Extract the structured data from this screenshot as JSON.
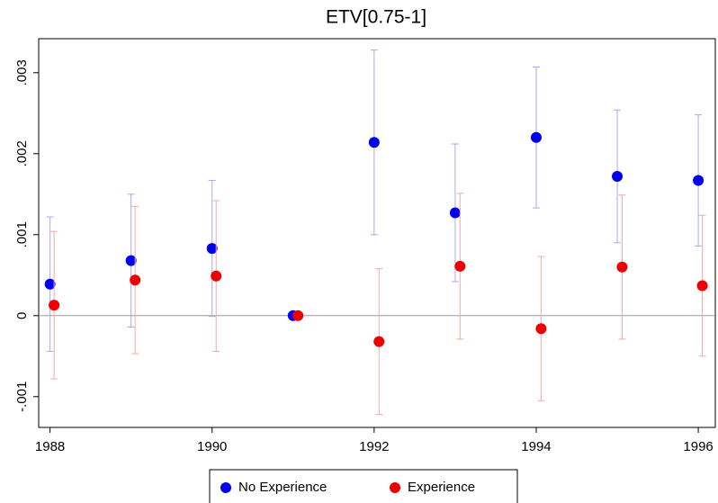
{
  "chart_data": {
    "type": "scatter",
    "title": "ETV[0.75-1]",
    "xlim": [
      1987.86,
      1996.21
    ],
    "xticks": [
      1988,
      1990,
      1992,
      1994,
      1996
    ],
    "ylim": [
      -0.00138,
      0.00342
    ],
    "yticks": [
      {
        "value": -0.001,
        "label": "-.001"
      },
      0,
      {
        "value": 0.001,
        "label": ".001"
      },
      {
        "value": 0.002,
        "label": ".002"
      },
      {
        "value": 0.003,
        "label": ".003"
      }
    ],
    "legend": "bottom",
    "series": [
      {
        "name": "No Experience",
        "color": "#0000ee",
        "error_color": "#a8a8f4",
        "x": [
          1988,
          1989,
          1990,
          1991,
          1992,
          1993,
          1994,
          1995,
          1996
        ],
        "values": [
          0.00039,
          0.00068,
          0.00083,
          0,
          0.00214,
          0.00127,
          0.0022,
          0.00172,
          0.00167
        ],
        "errors": [
          0.00083,
          0.00082,
          0.00084,
          0,
          0.00114,
          0.00085,
          0.00087,
          0.00082,
          0.00081
        ]
      },
      {
        "name": "Experience",
        "color": "#ee0000",
        "error_color": "#f4a8a8",
        "x": [
          1988.05,
          1989.05,
          1990.05,
          1991.06,
          1992.06,
          1993.06,
          1994.06,
          1995.06,
          1996.05
        ],
        "values": [
          0.00013,
          0.00044,
          0.00049,
          0,
          -0.00032,
          0.00061,
          -0.00016,
          0.0006,
          0.00037
        ],
        "errors": [
          0.00091,
          0.00091,
          0.00093,
          0,
          0.0009,
          0.0009,
          0.00089,
          0.00089,
          0.00087
        ]
      }
    ]
  }
}
